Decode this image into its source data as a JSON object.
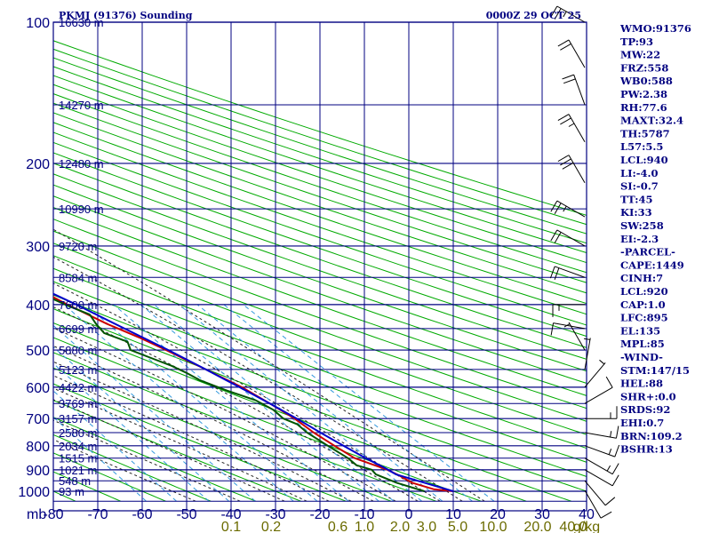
{
  "header": {
    "station_title": "PKMJ (91376) Sounding",
    "valid_time": "0000Z 29 OCT 25"
  },
  "chart_data": {
    "type": "line",
    "title": "PKMJ (91376) Sounding",
    "subtitle": "0000Z 29 OCT 25",
    "pressure_unit": "mb",
    "mixing_ratio_unit": "g/kg",
    "pressure_ticks": [
      {
        "p": 100,
        "label": "100"
      },
      {
        "p": 200,
        "label": "200"
      },
      {
        "p": 300,
        "label": "300"
      },
      {
        "p": 400,
        "label": "400"
      },
      {
        "p": 500,
        "label": "500"
      },
      {
        "p": 600,
        "label": "600"
      },
      {
        "p": 700,
        "label": "700"
      },
      {
        "p": 800,
        "label": "800"
      },
      {
        "p": 900,
        "label": "900"
      },
      {
        "p": 1000,
        "label": "1000"
      }
    ],
    "temperature_ticks": [
      {
        "t": -80,
        "label": "-80"
      },
      {
        "t": -70,
        "label": "-70"
      },
      {
        "t": -60,
        "label": "-60"
      },
      {
        "t": -50,
        "label": "-50"
      },
      {
        "t": -40,
        "label": "-40"
      },
      {
        "t": -30,
        "label": "-30"
      },
      {
        "t": -20,
        "label": "-20"
      },
      {
        "t": -10,
        "label": "-10"
      },
      {
        "t": 0,
        "label": "0"
      },
      {
        "t": 10,
        "label": "10"
      },
      {
        "t": 20,
        "label": "20"
      },
      {
        "t": 30,
        "label": "30"
      },
      {
        "t": 40,
        "label": "40"
      }
    ],
    "mixing_ratio_labels": [
      {
        "t": -40,
        "label": "0.1"
      },
      {
        "t": -31,
        "label": "0.2"
      },
      {
        "t": -16,
        "label": "0.6"
      },
      {
        "t": -10,
        "label": "1.0"
      },
      {
        "t": -2,
        "label": "2.0"
      },
      {
        "t": 4,
        "label": "3.0"
      },
      {
        "t": 11,
        "label": "5.0"
      },
      {
        "t": 19,
        "label": "10.0"
      },
      {
        "t": 29,
        "label": "20.0"
      },
      {
        "t": 37,
        "label": "40.0"
      }
    ],
    "height_labels": [
      {
        "p": 100,
        "label": "16630 m"
      },
      {
        "p": 150,
        "label": "14270 m"
      },
      {
        "p": 200,
        "label": "12480 m"
      },
      {
        "p": 250,
        "label": "10990 m"
      },
      {
        "p": 300,
        "label": "9720 m"
      },
      {
        "p": 350,
        "label": "8584 m"
      },
      {
        "p": 400,
        "label": "7600 m"
      },
      {
        "p": 450,
        "label": "6699 m"
      },
      {
        "p": 500,
        "label": "5880 m"
      },
      {
        "p": 550,
        "label": "5123 m"
      },
      {
        "p": 600,
        "label": "4422 m"
      },
      {
        "p": 650,
        "label": "3769 m"
      },
      {
        "p": 700,
        "label": "3157 m"
      },
      {
        "p": 750,
        "label": "2580 m"
      },
      {
        "p": 800,
        "label": "2034 m"
      },
      {
        "p": 850,
        "label": "1515 m"
      },
      {
        "p": 900,
        "label": "1021 m"
      },
      {
        "p": 950,
        "label": "548 m"
      },
      {
        "p": 1000,
        "label": "93 m"
      }
    ],
    "series": [
      {
        "name": "temperature",
        "color": "#cc0000",
        "points": [
          [
            1000,
            30.0
          ],
          [
            990,
            26.0
          ],
          [
            960,
            22.5
          ],
          [
            925,
            21.0
          ],
          [
            900,
            19.5
          ],
          [
            850,
            14.5
          ],
          [
            800,
            12.5
          ],
          [
            750,
            10.5
          ],
          [
            700,
            9.0
          ],
          [
            650,
            6.5
          ],
          [
            600,
            3.5
          ],
          [
            550,
            -1.0
          ],
          [
            500,
            -6.0
          ],
          [
            470,
            -9.5
          ],
          [
            440,
            -14.0
          ],
          [
            400,
            -19.0
          ],
          [
            350,
            -25.0
          ],
          [
            300,
            -33.0
          ],
          [
            250,
            -41.0
          ],
          [
            200,
            -52.0
          ],
          [
            150,
            -66.0
          ],
          [
            100,
            -81.0
          ]
        ]
      },
      {
        "name": "dewpoint",
        "color": "#005500",
        "points": [
          [
            1000,
            23.5
          ],
          [
            960,
            19.0
          ],
          [
            920,
            16.0
          ],
          [
            900,
            16.0
          ],
          [
            880,
            13.5
          ],
          [
            850,
            13.0
          ],
          [
            800,
            11.0
          ],
          [
            750,
            9.0
          ],
          [
            720,
            8.5
          ],
          [
            700,
            6.5
          ],
          [
            670,
            6.0
          ],
          [
            640,
            4.0
          ],
          [
            610,
            -0.5
          ],
          [
            580,
            -4.5
          ],
          [
            560,
            -6.0
          ],
          [
            540,
            -8.0
          ],
          [
            520,
            -11.0
          ],
          [
            500,
            -14.0
          ],
          [
            480,
            -13.0
          ],
          [
            460,
            -16.5
          ],
          [
            440,
            -16.5
          ],
          [
            420,
            -16.0
          ],
          [
            400,
            -19.5
          ],
          [
            380,
            -22.5
          ],
          [
            350,
            -28.0
          ],
          [
            300,
            -41.0
          ],
          [
            260,
            -43.0
          ],
          [
            240,
            -50.0
          ],
          [
            200,
            -60.0
          ],
          [
            150,
            -72.0
          ],
          [
            130,
            -81.0
          ]
        ]
      },
      {
        "name": "parcel",
        "color": "#0000cc",
        "points": [
          [
            1000,
            30.0
          ],
          [
            920,
            20.5
          ],
          [
            895,
            19.5
          ],
          [
            850,
            17.0
          ],
          [
            800,
            14.5
          ],
          [
            750,
            12.0
          ],
          [
            700,
            9.5
          ],
          [
            650,
            6.5
          ],
          [
            600,
            3.0
          ],
          [
            550,
            -1.0
          ],
          [
            500,
            -5.5
          ],
          [
            450,
            -11.0
          ],
          [
            400,
            -17.0
          ],
          [
            350,
            -24.5
          ],
          [
            300,
            -32.5
          ],
          [
            250,
            -42.0
          ],
          [
            200,
            -53.0
          ],
          [
            150,
            -67.0
          ],
          [
            130,
            -74.0
          ]
        ]
      }
    ],
    "wind_barbs": [
      {
        "p": 100,
        "dir": 300,
        "kt": 25
      },
      {
        "p": 125,
        "dir": 330,
        "kt": 20
      },
      {
        "p": 150,
        "dir": 340,
        "kt": 20
      },
      {
        "p": 180,
        "dir": 330,
        "kt": 25
      },
      {
        "p": 220,
        "dir": 330,
        "kt": 30
      },
      {
        "p": 260,
        "dir": 300,
        "kt": 25
      },
      {
        "p": 300,
        "dir": 300,
        "kt": 20
      },
      {
        "p": 350,
        "dir": 290,
        "kt": 20
      },
      {
        "p": 400,
        "dir": 270,
        "kt": 15
      },
      {
        "p": 450,
        "dir": 280,
        "kt": 10
      },
      {
        "p": 500,
        "dir": 330,
        "kt": 5
      },
      {
        "p": 550,
        "dir": 10,
        "kt": 5
      },
      {
        "p": 600,
        "dir": 40,
        "kt": 5
      },
      {
        "p": 650,
        "dir": 60,
        "kt": 10
      },
      {
        "p": 700,
        "dir": 90,
        "kt": 15
      },
      {
        "p": 750,
        "dir": 100,
        "kt": 15
      },
      {
        "p": 800,
        "dir": 110,
        "kt": 15
      },
      {
        "p": 850,
        "dir": 120,
        "kt": 15
      },
      {
        "p": 900,
        "dir": 120,
        "kt": 10
      },
      {
        "p": 950,
        "dir": 140,
        "kt": 10
      },
      {
        "p": 1000,
        "dir": 150,
        "kt": 10
      }
    ]
  },
  "indices": [
    "WMO:91376",
    "TP:93",
    "MW:22",
    "FRZ:558",
    "WB0:588",
    "PW:2.38",
    "RH:77.6",
    "MAXT:32.4",
    "TH:5787",
    "L57:5.5",
    "LCL:940",
    "LI:-4.0",
    "SI:-0.7",
    "TT:45",
    "KI:33",
    "SW:258",
    "EI:-2.3",
    "-PARCEL-",
    "CAPE:1449",
    "CINH:7",
    "LCL:920",
    "CAP:1.0",
    "LFC:895",
    "EL:135",
    "MPL:85",
    "-WIND-",
    "STM:147/15",
    "HEL:88",
    "SHR+:0.0",
    "SRDS:92",
    "EHI:0.7",
    "BRN:109.2",
    "BSHR:13"
  ],
  "colors": {
    "grid": "#000080",
    "dry_adiabat": "#00aa00",
    "moist_adiabat": "#222222",
    "mixing_ratio": "#3399dd",
    "temperature": "#cc0000",
    "dewpoint": "#005500",
    "parcel": "#0000cc",
    "mix_label": "#6b6b00"
  }
}
